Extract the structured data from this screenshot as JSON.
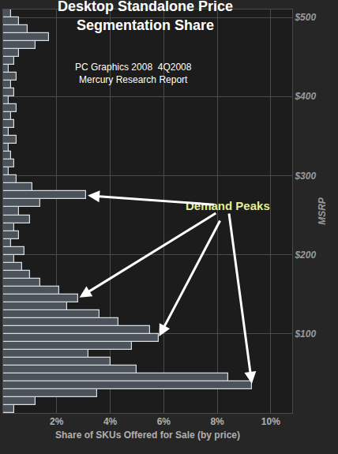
{
  "chart_data": {
    "type": "bar",
    "orientation": "horizontal",
    "title": "Desktop Standalone Price Segmentation Share",
    "subtitle": [
      "PC Graphics 2008  4Q2008",
      "Mercury Research Report"
    ],
    "x_label": "Share of SKUs Offered for Sale (by price)",
    "y_label": "MSRP",
    "annotations": [
      {
        "text": "Demand Peaks"
      }
    ],
    "bins": [
      0,
      10,
      20,
      30,
      40,
      50,
      60,
      70,
      80,
      90,
      100,
      110,
      120,
      130,
      140,
      150,
      160,
      170,
      180,
      190,
      200,
      210,
      220,
      230,
      240,
      250,
      260,
      270,
      280,
      290,
      300,
      310,
      320,
      330,
      340,
      350,
      360,
      370,
      380,
      390,
      400,
      410,
      420,
      430,
      440,
      450,
      460,
      470,
      480,
      490,
      500,
      510
    ],
    "values": [
      0.4,
      1.2,
      3.5,
      9.3,
      8.4,
      5.0,
      4.0,
      3.2,
      4.8,
      5.8,
      5.5,
      4.3,
      3.6,
      2.4,
      2.8,
      2.1,
      1.4,
      1.0,
      0.7,
      0.4,
      0.8,
      0.3,
      0.6,
      0.4,
      1.0,
      0.6,
      1.4,
      3.1,
      1.1,
      0.5,
      0.2,
      0.4,
      0.3,
      0.2,
      0.5,
      0.2,
      0.4,
      0.3,
      0.5,
      0.2,
      0.4,
      0.3,
      0.5,
      0.2,
      0.4,
      0.6,
      1.2,
      1.7,
      0.9,
      0.6,
      0.3
    ],
    "color": "#4b525a",
    "xlim": [
      0,
      10.8
    ],
    "xticks": [
      {
        "value": 2,
        "label": "2%"
      },
      {
        "value": 4,
        "label": "4%"
      },
      {
        "value": 6,
        "label": "6%"
      },
      {
        "value": 8,
        "label": "8%"
      },
      {
        "value": 10,
        "label": "10%"
      }
    ],
    "ylim": [
      0,
      510
    ],
    "yticks": [
      {
        "value": 100,
        "label": "$100"
      },
      {
        "value": 200,
        "label": "$200"
      },
      {
        "value": 300,
        "label": "$300"
      },
      {
        "value": 400,
        "label": "$400"
      },
      {
        "value": 500,
        "label": "$500"
      }
    ],
    "grid": true
  }
}
